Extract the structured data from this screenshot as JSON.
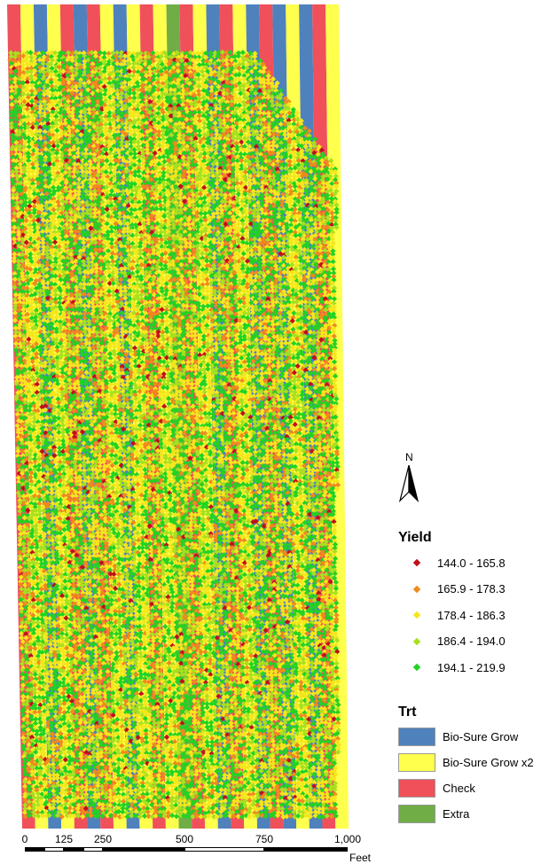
{
  "trt_colors": {
    "Bio-Sure Grow": "#4f81bd",
    "Bio-Sure Grow x2": "#ffff4d",
    "Check": "#f0505a",
    "Extra": "#70ad47"
  },
  "yield_legend": {
    "title": "Yield",
    "classes": [
      {
        "label": "144.0 - 165.8",
        "color": "#c0101a"
      },
      {
        "label": "165.9 - 178.3",
        "color": "#f08a1c"
      },
      {
        "label": "178.4 - 186.3",
        "color": "#f5e61c"
      },
      {
        "label": "186.4 - 194.0",
        "color": "#a8e01e"
      },
      {
        "label": "194.1 - 219.9",
        "color": "#22d322"
      }
    ]
  },
  "trt_legend": {
    "title": "Trt",
    "items": [
      {
        "label": "Bio-Sure Grow",
        "color": "#4f81bd"
      },
      {
        "label": "Bio-Sure Grow x2",
        "color": "#ffff4d"
      },
      {
        "label": "Check",
        "color": "#f0505a"
      },
      {
        "label": "Extra",
        "color": "#70ad47"
      }
    ]
  },
  "north_arrow": {
    "label": "N",
    "icon": "north-arrow-icon"
  },
  "scale_bar": {
    "ticks": [
      "0",
      "125",
      "250",
      "500",
      "750",
      "1,000"
    ],
    "unit": "Feet"
  }
}
